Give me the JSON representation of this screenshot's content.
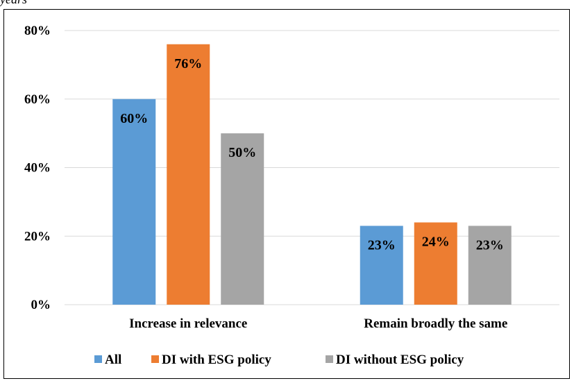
{
  "caption_fragment": "years",
  "colors": {
    "all": "#5b9bd5",
    "with_esg": "#ed7d31",
    "without_esg": "#a5a5a5",
    "grid": "#d9d9d9"
  },
  "chart_data": {
    "type": "bar",
    "title": "",
    "xlabel": "",
    "ylabel": "",
    "categories": [
      "Increase in relevance",
      "Remain broadly the same"
    ],
    "series": [
      {
        "name": "All",
        "values": [
          60,
          23
        ],
        "labels": [
          "60%",
          "23%"
        ]
      },
      {
        "name": "DI with ESG policy",
        "values": [
          76,
          24
        ],
        "labels": [
          "76%",
          "24%"
        ]
      },
      {
        "name": "DI without ESG policy",
        "values": [
          50,
          23
        ],
        "labels": [
          "50%",
          "23%"
        ]
      }
    ],
    "ylim": [
      0,
      80
    ],
    "yticks": [
      0,
      20,
      40,
      60,
      80
    ],
    "ytick_labels": [
      "0%",
      "20%",
      "40%",
      "60%",
      "80%"
    ],
    "grid": true,
    "legend_position": "bottom"
  }
}
